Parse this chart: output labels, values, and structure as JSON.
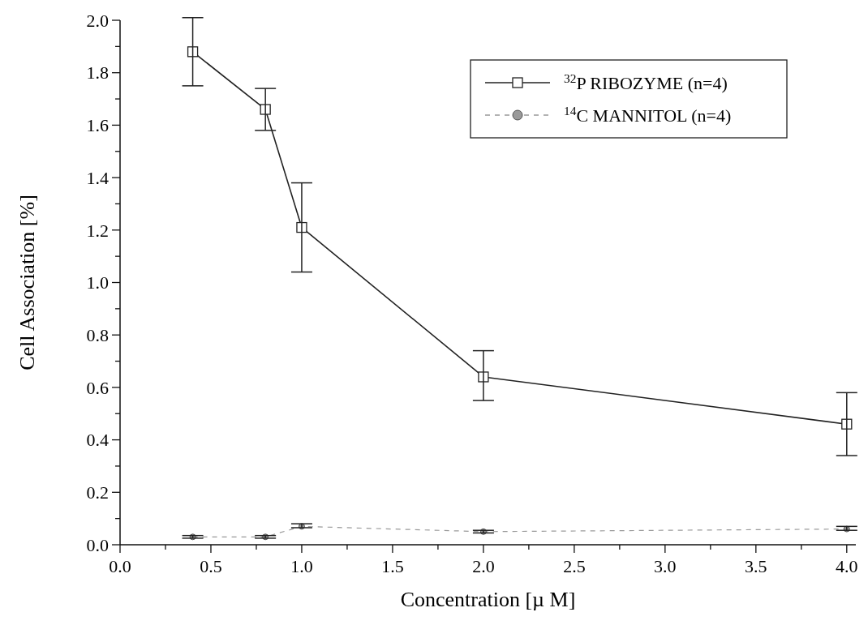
{
  "chart_data": {
    "type": "line",
    "xlabel": "Concentration [µ M]",
    "ylabel": "Cell Association [%]",
    "xlim": [
      0,
      4.05
    ],
    "ylim": [
      0,
      2.0
    ],
    "xticks": [
      {
        "value": 0,
        "label": "0.0"
      },
      {
        "value": 0.25,
        "label": null
      },
      {
        "value": 0.5,
        "label": "0.5"
      },
      {
        "value": 0.75,
        "label": null
      },
      {
        "value": 1,
        "label": "1.0"
      },
      {
        "value": 1.25,
        "label": null
      },
      {
        "value": 1.5,
        "label": "1.5"
      },
      {
        "value": 1.75,
        "label": null
      },
      {
        "value": 2,
        "label": "2.0"
      },
      {
        "value": 2.25,
        "label": null
      },
      {
        "value": 2.5,
        "label": "2.5"
      },
      {
        "value": 2.75,
        "label": null
      },
      {
        "value": 3,
        "label": "3.0"
      },
      {
        "value": 3.25,
        "label": null
      },
      {
        "value": 3.5,
        "label": "3.5"
      },
      {
        "value": 3.75,
        "label": null
      },
      {
        "value": 4,
        "label": "4.0"
      }
    ],
    "yticks": [
      {
        "value": 0,
        "label": "0.0"
      },
      {
        "value": 0.1,
        "label": null
      },
      {
        "value": 0.2,
        "label": "0.2"
      },
      {
        "value": 0.3,
        "label": null
      },
      {
        "value": 0.4,
        "label": "0.4"
      },
      {
        "value": 0.5,
        "label": null
      },
      {
        "value": 0.6,
        "label": "0.6"
      },
      {
        "value": 0.7,
        "label": null
      },
      {
        "value": 0.8,
        "label": "0.8"
      },
      {
        "value": 0.9,
        "label": null
      },
      {
        "value": 1.0,
        "label": "1.0"
      },
      {
        "value": 1.1,
        "label": null
      },
      {
        "value": 1.2,
        "label": "1.2"
      },
      {
        "value": 1.3,
        "label": null
      },
      {
        "value": 1.4,
        "label": "1.4"
      },
      {
        "value": 1.5,
        "label": null
      },
      {
        "value": 1.6,
        "label": "1.6"
      },
      {
        "value": 1.7,
        "label": null
      },
      {
        "value": 1.8,
        "label": "1.8"
      },
      {
        "value": 1.9,
        "label": null
      },
      {
        "value": 2.0,
        "label": "2.0"
      }
    ],
    "x": [
      0.4,
      0.8,
      1.0,
      2.0,
      4.0
    ],
    "legend": "top right",
    "grid": false,
    "series": [
      {
        "name": "$^{32}$P RIBOZYME (n=4)",
        "color": "#222222",
        "marker": "square",
        "line_style": "solid",
        "values": [
          1.88,
          1.66,
          1.21,
          0.64,
          0.46
        ],
        "errors": [
          [
            1.75,
            2.01
          ],
          [
            1.58,
            1.74
          ],
          [
            1.04,
            1.38
          ],
          [
            0.55,
            0.74
          ],
          [
            0.34,
            0.58
          ]
        ]
      },
      {
        "name": "$^{14}$C MANNITOL (n=4)",
        "color": "#999999",
        "marker": "circle",
        "line_style": "dashed",
        "values": [
          0.03,
          0.03,
          0.07,
          0.05,
          0.06
        ],
        "errors": [
          [
            0.025,
            0.035
          ],
          [
            0.025,
            0.035
          ],
          [
            0.065,
            0.08
          ],
          [
            0.045,
            0.055
          ],
          [
            0.055,
            0.07
          ]
        ]
      }
    ]
  }
}
